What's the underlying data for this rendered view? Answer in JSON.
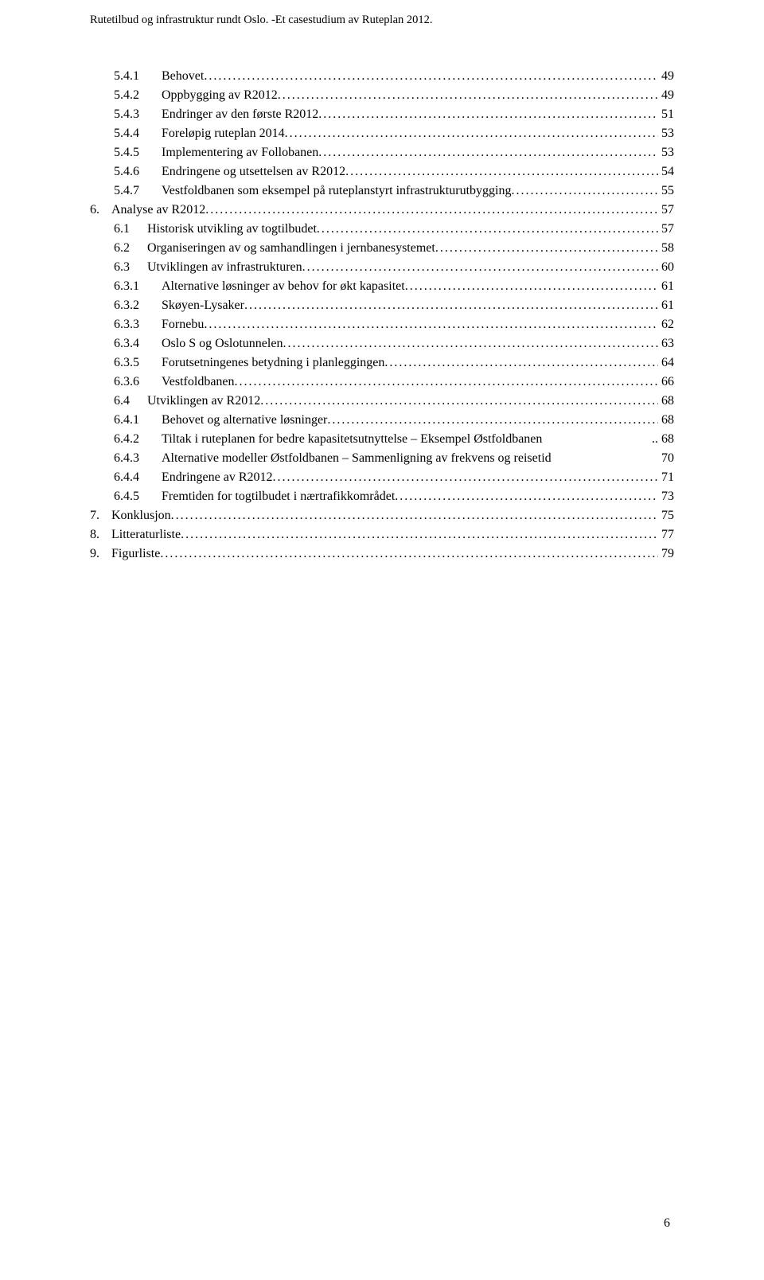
{
  "header": "Rutetilbud og infrastruktur rundt Oslo. -Et casestudium av Ruteplan 2012.",
  "pageNumber": "6",
  "toc": [
    {
      "indent": 2,
      "num": "5.4.1",
      "label": "Behovet",
      "page": "49"
    },
    {
      "indent": 2,
      "num": "5.4.2",
      "label": "Oppbygging av R2012",
      "page": "49"
    },
    {
      "indent": 2,
      "num": "5.4.3",
      "label": "Endringer av den første R2012",
      "page": "51"
    },
    {
      "indent": 2,
      "num": "5.4.4",
      "label": "Foreløpig ruteplan 2014",
      "page": "53"
    },
    {
      "indent": 2,
      "num": "5.4.5",
      "label": "Implementering av Follobanen",
      "page": "53"
    },
    {
      "indent": 2,
      "num": "5.4.6",
      "label": "Endringene og utsettelsen av R2012",
      "page": "54"
    },
    {
      "indent": 2,
      "num": "5.4.7",
      "label": "Vestfoldbanen som eksempel på ruteplanstyrt infrastrukturutbygging",
      "page": "55"
    },
    {
      "indent": 0,
      "num": "6.",
      "label": "Analyse av R2012",
      "page": "57"
    },
    {
      "indent": 1,
      "num": "6.1",
      "label": "Historisk utvikling av togtilbudet",
      "page": "57"
    },
    {
      "indent": 1,
      "num": "6.2",
      "label": "Organiseringen av og samhandlingen i jernbanesystemet",
      "page": "58"
    },
    {
      "indent": 1,
      "num": "6.3",
      "label": "Utviklingen av infrastrukturen",
      "page": "60"
    },
    {
      "indent": 2,
      "num": "6.3.1",
      "label": "Alternative løsninger av behov for økt kapasitet",
      "page": "61"
    },
    {
      "indent": 2,
      "num": "6.3.2",
      "label": "Skøyen-Lysaker",
      "page": "61"
    },
    {
      "indent": 2,
      "num": "6.3.3",
      "label": "Fornebu",
      "page": "62"
    },
    {
      "indent": 2,
      "num": "6.3.4",
      "label": "Oslo S og Oslotunnelen",
      "page": "63"
    },
    {
      "indent": 2,
      "num": "6.3.5",
      "label": "Forutsetningenes betydning i planleggingen",
      "page": "64"
    },
    {
      "indent": 2,
      "num": "6.3.6",
      "label": "Vestfoldbanen",
      "page": "66"
    },
    {
      "indent": 1,
      "num": "6.4",
      "label": "Utviklingen av R2012",
      "page": "68"
    },
    {
      "indent": 2,
      "num": "6.4.1",
      "label": "Behovet og alternative løsninger",
      "page": "68"
    },
    {
      "indent": 2,
      "num": "6.4.2",
      "label": "Tiltak i ruteplanen for bedre kapasitetsutnyttelse – Eksempel Østfoldbanen",
      "page": "68",
      "dots": ".."
    },
    {
      "indent": 2,
      "num": "6.4.3",
      "label": "Alternative modeller Østfoldbanen – Sammenligning av frekvens og reisetid",
      "page": "70",
      "dots": " "
    },
    {
      "indent": 2,
      "num": "6.4.4",
      "label": "Endringene av R2012",
      "page": "71"
    },
    {
      "indent": 2,
      "num": "6.4.5",
      "label": "Fremtiden for togtilbudet i nærtrafikkområdet",
      "page": "73"
    },
    {
      "indent": 0,
      "num": "7.",
      "label": "Konklusjon",
      "page": "75"
    },
    {
      "indent": 0,
      "num": "8.",
      "label": "Litteraturliste",
      "page": "77"
    },
    {
      "indent": 0,
      "num": "9.",
      "label": "Figurliste",
      "page": "79"
    }
  ]
}
